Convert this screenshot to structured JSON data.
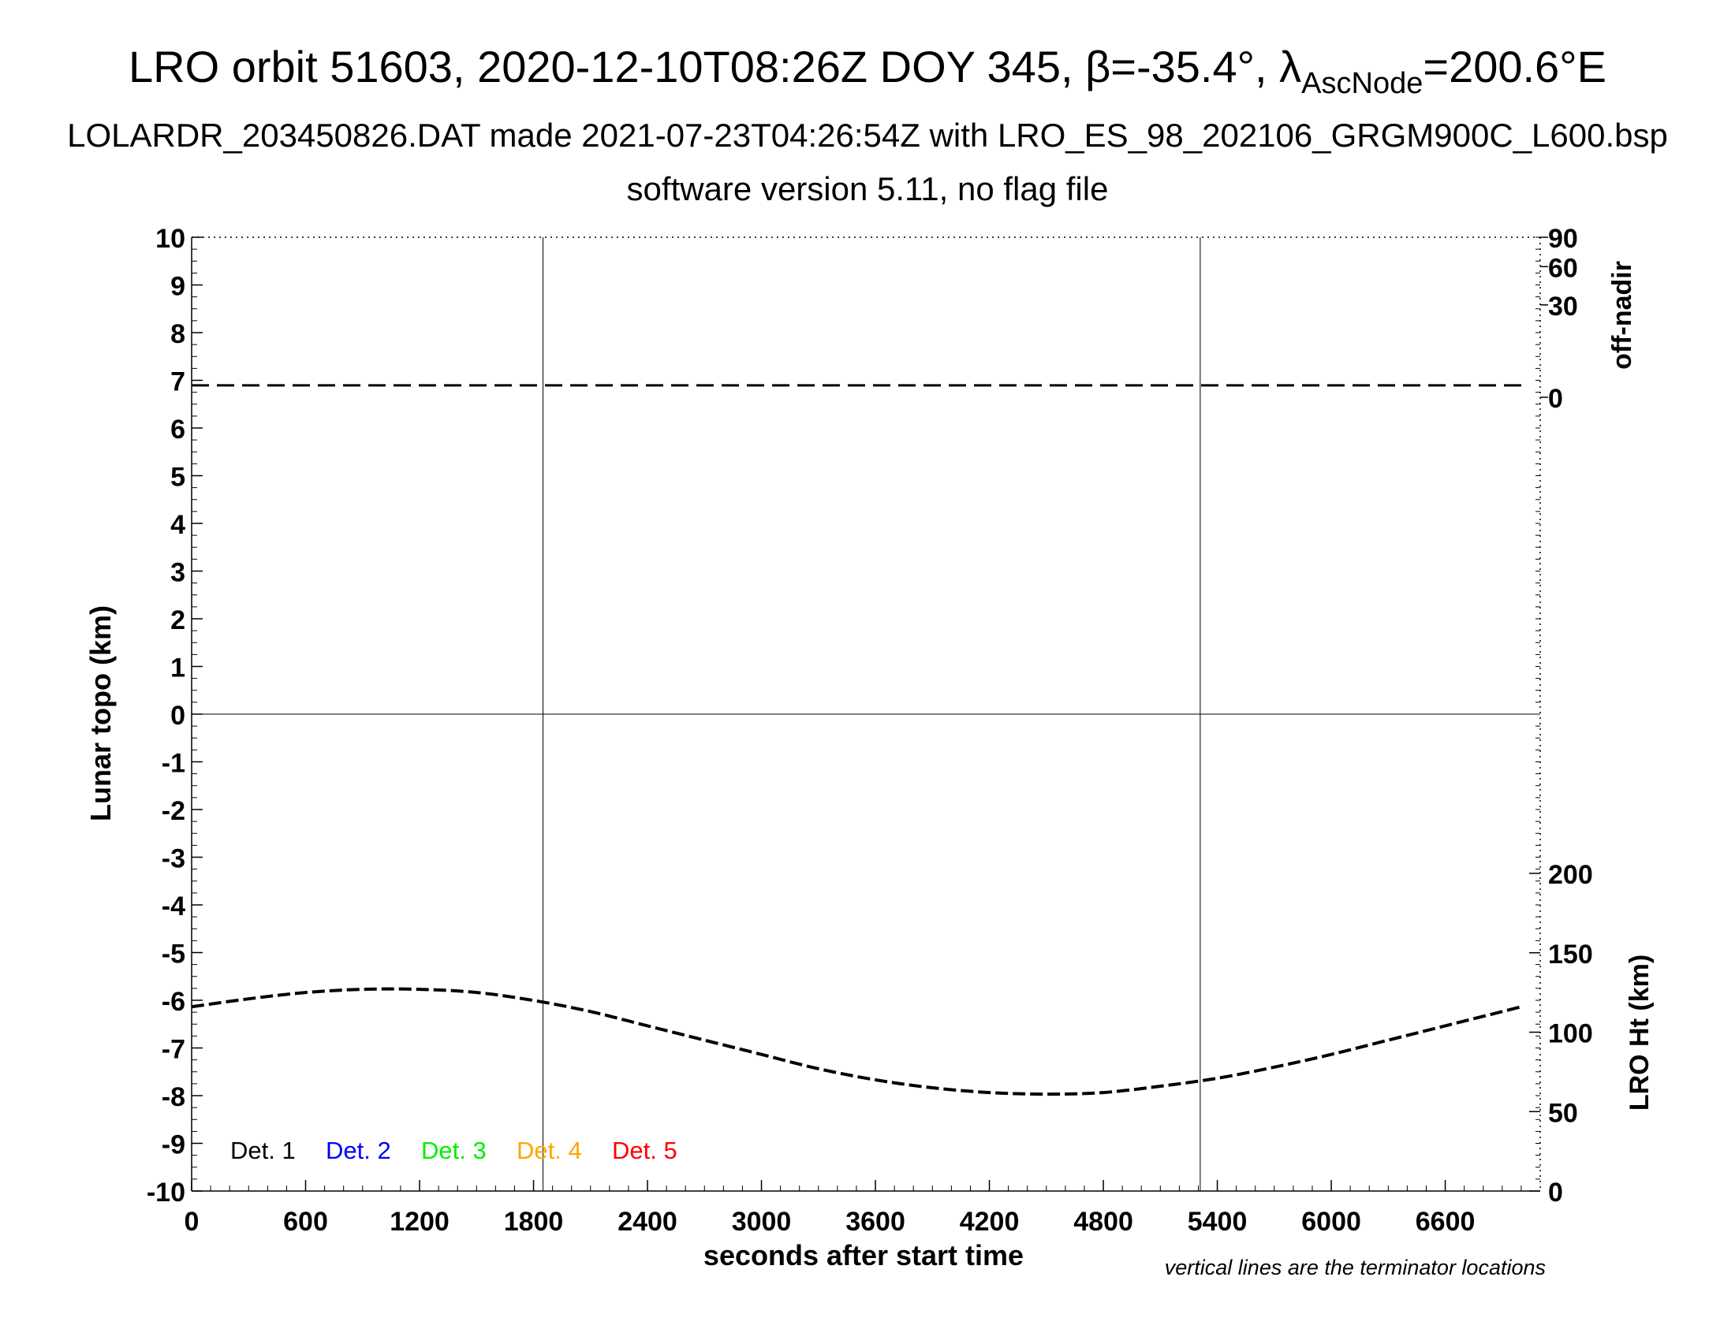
{
  "header": {
    "title_main": "LRO orbit 51603, 2020-12-10T08:26Z DOY 345, β=-35.4°, λ",
    "title_sub": "AscNode",
    "title_end": "=200.6°E",
    "line2": "LOLARDR_203450826.DAT made 2021-07-23T04:26:54Z with LRO_ES_98_202106_GRGM900C_L600.bsp",
    "line3": "software version 5.11, no flag file"
  },
  "footnote": "vertical lines are the terminator locations",
  "chart_data": {
    "type": "line",
    "xlabel": "seconds after start time",
    "ylabel_left": "Lunar topo (km)",
    "ylabel_right_top": "off-nadir",
    "ylabel_right_bottom": "LRO Ht (km)",
    "xlim": [
      0,
      7100
    ],
    "ylim_left": [
      -10,
      10
    ],
    "x_ticks": [
      0,
      600,
      1200,
      1800,
      2400,
      3000,
      3600,
      4200,
      4800,
      5400,
      6000,
      6600
    ],
    "y_ticks_left": [
      10,
      9,
      8,
      7,
      6,
      5,
      4,
      3,
      2,
      1,
      0,
      -1,
      -2,
      -3,
      -4,
      -5,
      -6,
      -7,
      -8,
      -9,
      -10
    ],
    "offnadir_ticks": [
      90,
      60,
      30,
      0
    ],
    "ht_ticks": [
      200,
      150,
      100,
      50,
      0
    ],
    "ht_range_km": [
      0,
      200
    ],
    "terminators_s": [
      1850,
      5310
    ],
    "legend": [
      {
        "label": "Det. 1",
        "color": "#000000"
      },
      {
        "label": "Det. 2",
        "color": "#0000ff"
      },
      {
        "label": "Det. 3",
        "color": "#00ee00"
      },
      {
        "label": "Det. 4",
        "color": "#ffa500"
      },
      {
        "label": "Det. 5",
        "color": "#ff0000"
      }
    ],
    "series": [
      {
        "name": "off-nadir",
        "x": [
          0,
          7000
        ],
        "y": [
          0.5,
          0.5
        ]
      },
      {
        "name": "LRO Ht (km)",
        "x": [
          0,
          300,
          600,
          900,
          1200,
          1500,
          1800,
          2100,
          2400,
          2700,
          3000,
          3300,
          3600,
          3900,
          4200,
          4500,
          4800,
          5100,
          5400,
          5700,
          6000,
          6300,
          6600,
          6900,
          7000
        ],
        "y": [
          116,
          121,
          125,
          127,
          127,
          125,
          120,
          113,
          104,
          95,
          86,
          77,
          70,
          65,
          62,
          61,
          62,
          66,
          71,
          78,
          86,
          95,
          104,
          113,
          116
        ]
      }
    ]
  }
}
